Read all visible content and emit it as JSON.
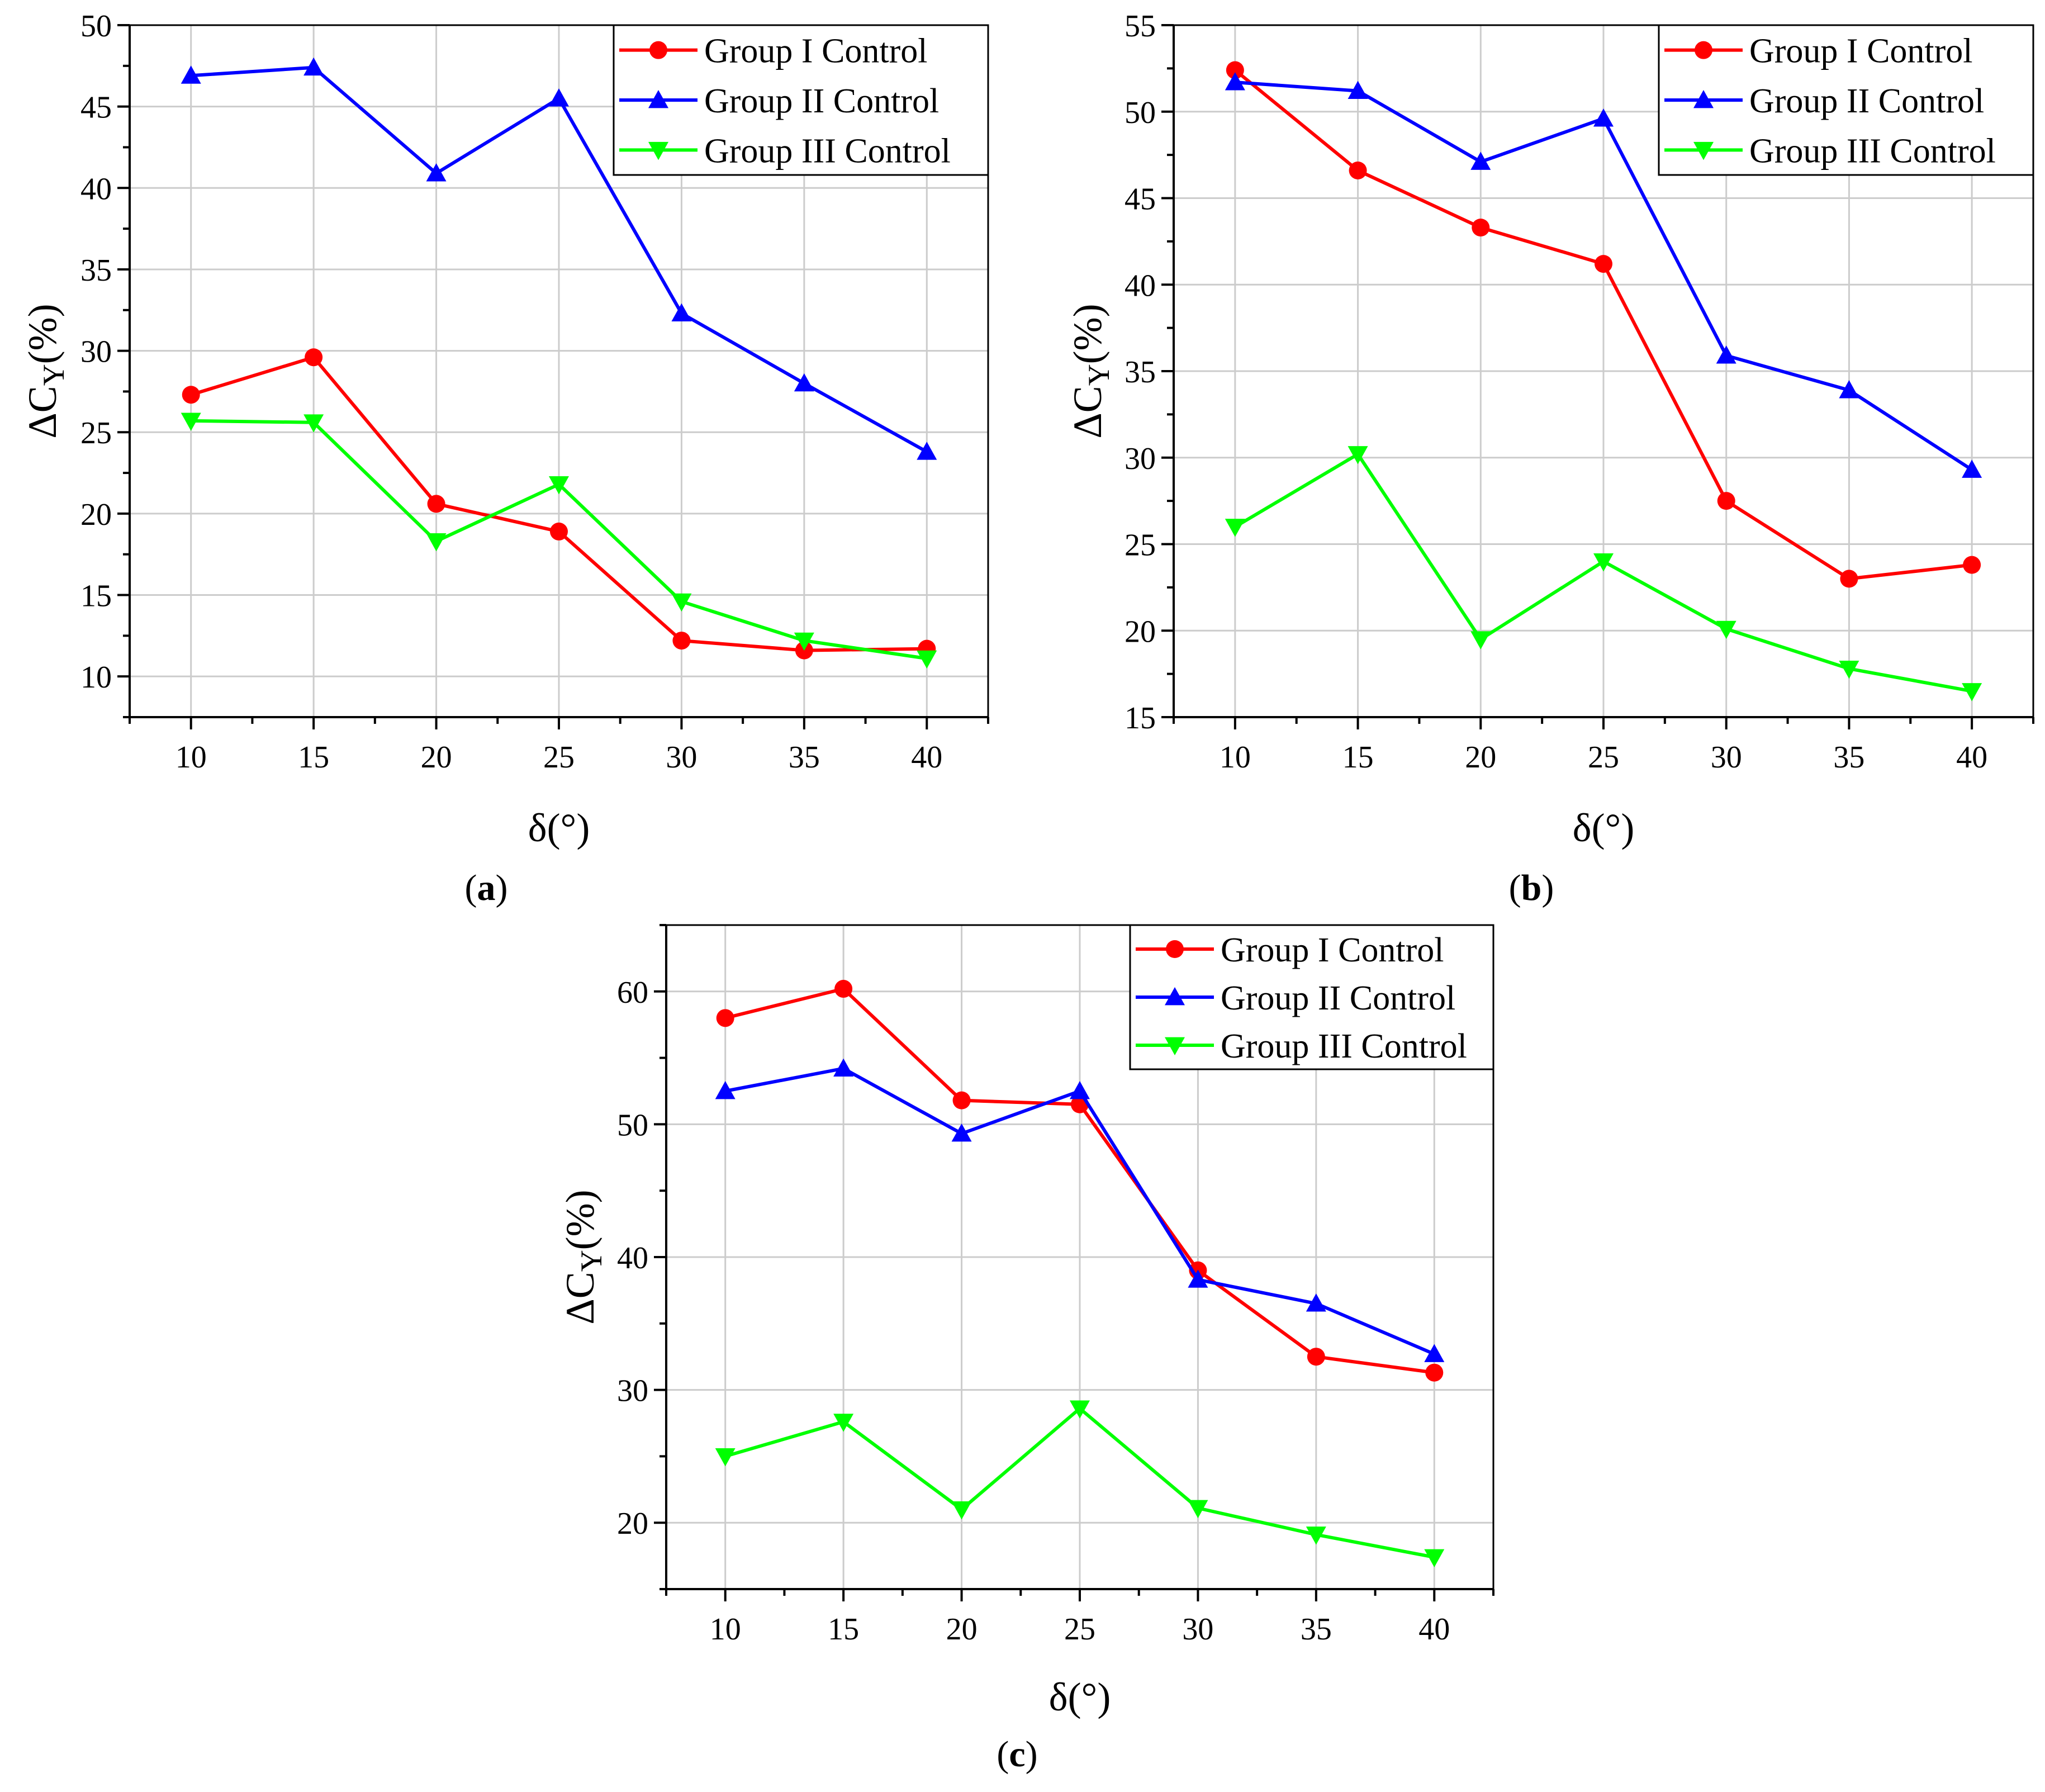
{
  "chart_data": [
    {
      "type": "line",
      "panel": "a",
      "panel_label": "a",
      "xlabel": "δ(°)",
      "ylabel": "ΔC",
      "ylabel_sub": "Y",
      "ylabel_suffix": "(%)",
      "x": [
        10,
        15,
        20,
        25,
        30,
        35,
        40
      ],
      "xlim": [
        7.5,
        42.5
      ],
      "ylim": [
        7.5,
        50
      ],
      "yticks": [
        10,
        15,
        20,
        25,
        30,
        35,
        40,
        45,
        50
      ],
      "xticks": [
        10,
        15,
        20,
        25,
        30,
        35,
        40
      ],
      "legend_position": "top-right",
      "series": [
        {
          "name": "Group I Control",
          "color": "#ff0000",
          "marker": "circle",
          "values": [
            27.3,
            29.6,
            20.6,
            18.9,
            12.2,
            11.6,
            11.7
          ]
        },
        {
          "name": "Group II Control",
          "color": "#0000ff",
          "marker": "triangle-up",
          "values": [
            46.9,
            47.4,
            40.9,
            45.5,
            32.3,
            28.0,
            23.8
          ]
        },
        {
          "name": "Group III Control",
          "color": "#00ff00",
          "marker": "triangle-down",
          "values": [
            25.7,
            25.6,
            18.3,
            21.8,
            14.6,
            12.2,
            11.1
          ]
        }
      ]
    },
    {
      "type": "line",
      "panel": "b",
      "panel_label": "b",
      "xlabel": "δ(°)",
      "ylabel": "ΔC",
      "ylabel_sub": "Y",
      "ylabel_suffix": "(%)",
      "x": [
        10,
        15,
        20,
        25,
        30,
        35,
        40
      ],
      "xlim": [
        7.5,
        42.5
      ],
      "ylim": [
        15,
        55
      ],
      "yticks": [
        15,
        20,
        25,
        30,
        35,
        40,
        45,
        50,
        55
      ],
      "xticks": [
        10,
        15,
        20,
        25,
        30,
        35,
        40
      ],
      "legend_position": "top-right",
      "series": [
        {
          "name": "Group I Control",
          "color": "#ff0000",
          "marker": "circle",
          "values": [
            52.4,
            46.6,
            43.3,
            41.2,
            27.5,
            23.0,
            23.8
          ]
        },
        {
          "name": "Group II Control",
          "color": "#0000ff",
          "marker": "triangle-up",
          "values": [
            51.7,
            51.2,
            47.1,
            49.6,
            35.9,
            33.9,
            29.3
          ]
        },
        {
          "name": "Group III Control",
          "color": "#00ff00",
          "marker": "triangle-down",
          "values": [
            26.0,
            30.2,
            19.5,
            24.0,
            20.1,
            17.8,
            16.5
          ]
        }
      ]
    },
    {
      "type": "line",
      "panel": "c",
      "panel_label": "c",
      "xlabel": "δ(°)",
      "ylabel": "ΔC",
      "ylabel_sub": "Y",
      "ylabel_suffix": "(%)",
      "x": [
        10,
        15,
        20,
        25,
        30,
        35,
        40
      ],
      "xlim": [
        7.5,
        42.5
      ],
      "ylim": [
        15,
        65
      ],
      "yticks": [
        20,
        30,
        40,
        50,
        60
      ],
      "xticks": [
        10,
        15,
        20,
        25,
        30,
        35,
        40
      ],
      "legend_position": "top-right",
      "series": [
        {
          "name": "Group I Control",
          "color": "#ff0000",
          "marker": "circle",
          "values": [
            58.0,
            60.2,
            51.8,
            51.5,
            39.0,
            32.5,
            31.3
          ]
        },
        {
          "name": "Group II Control",
          "color": "#0000ff",
          "marker": "triangle-up",
          "values": [
            52.5,
            54.2,
            49.3,
            52.5,
            38.3,
            36.5,
            32.7
          ]
        },
        {
          "name": "Group III Control",
          "color": "#00ff00",
          "marker": "triangle-down",
          "values": [
            25.0,
            27.6,
            21.0,
            28.6,
            21.1,
            19.1,
            17.4
          ]
        }
      ]
    }
  ]
}
